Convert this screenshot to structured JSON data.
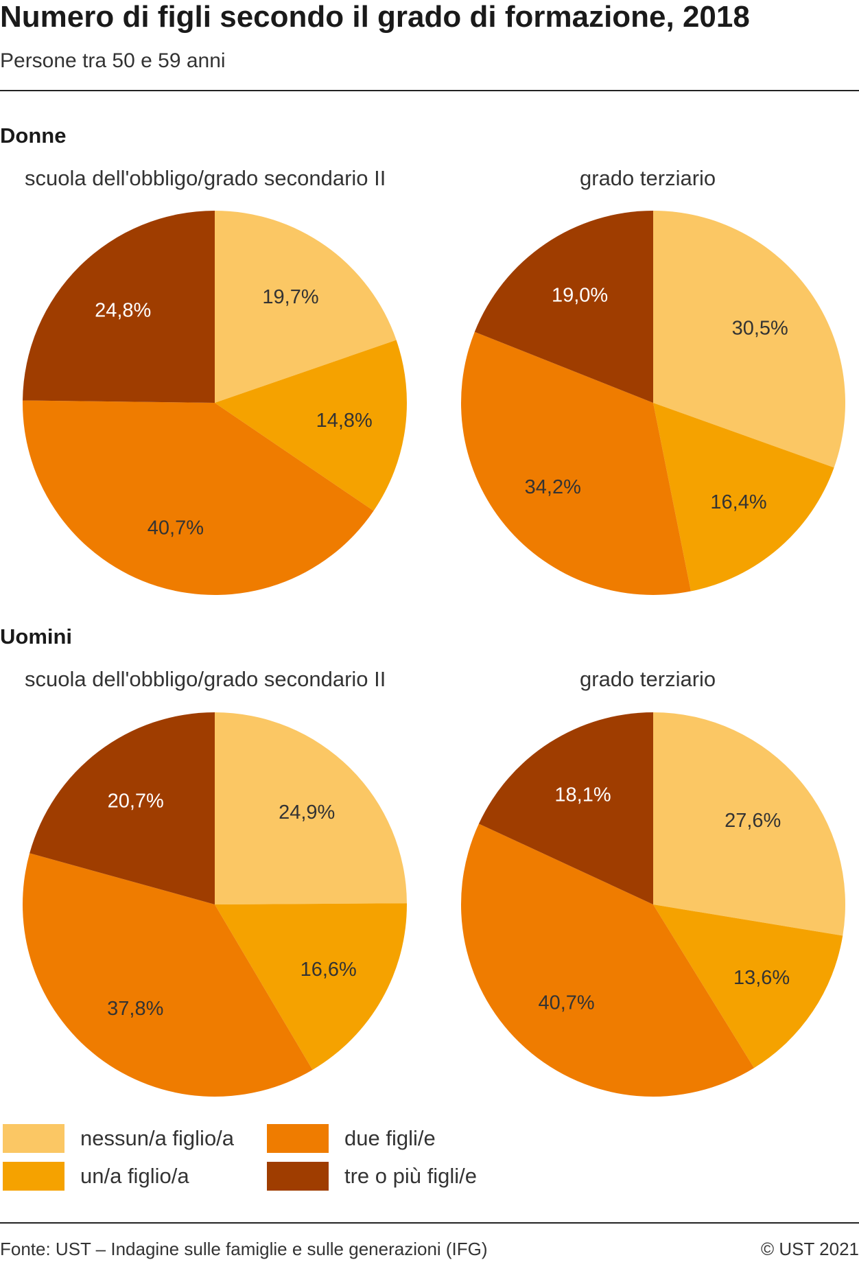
{
  "title": "Numero di figli secondo il grado di formazione, 2018",
  "subtitle": "Persone tra 50 e 59 anni",
  "groups": {
    "donne": "Donne",
    "uomini": "Uomini"
  },
  "colors": {
    "nessun": "#fbc764",
    "uno": "#f5a200",
    "due": "#ef7c00",
    "tre": "#9f3d00",
    "text_light": "#ffffff",
    "text_dark": "#333333"
  },
  "chart_data": [
    {
      "type": "pie",
      "group": "Donne",
      "title": "scuola dell'obbligo/grado secondario II",
      "categories": [
        "nessun/a figlio/a",
        "un/a figlio/a",
        "due figli/e",
        "tre o più figli/e"
      ],
      "values": [
        19.7,
        14.8,
        40.7,
        24.8
      ],
      "labels": [
        "19,7%",
        "14,8%",
        "40,7%",
        "24,8%"
      ]
    },
    {
      "type": "pie",
      "group": "Donne",
      "title": "grado terziario",
      "categories": [
        "nessun/a figlio/a",
        "un/a figlio/a",
        "due figli/e",
        "tre o più figli/e"
      ],
      "values": [
        30.5,
        16.4,
        34.2,
        19.0
      ],
      "labels": [
        "30,5%",
        "16,4%",
        "34,2%",
        "19,0%"
      ]
    },
    {
      "type": "pie",
      "group": "Uomini",
      "title": "scuola dell'obbligo/grado secondario II",
      "categories": [
        "nessun/a figlio/a",
        "un/a figlio/a",
        "due figli/e",
        "tre o più figli/e"
      ],
      "values": [
        24.9,
        16.6,
        37.8,
        20.7
      ],
      "labels": [
        "24,9%",
        "16,6%",
        "37,8%",
        "20,7%"
      ]
    },
    {
      "type": "pie",
      "group": "Uomini",
      "title": "grado terziario",
      "categories": [
        "nessun/a figlio/a",
        "un/a figlio/a",
        "due figli/e",
        "tre o più figli/e"
      ],
      "values": [
        27.6,
        13.6,
        40.7,
        18.1
      ],
      "labels": [
        "27,6%",
        "13,6%",
        "40,7%",
        "18,1%"
      ]
    }
  ],
  "legend": {
    "items": [
      {
        "label": "nessun/a figlio/a",
        "color": "#fbc764"
      },
      {
        "label": "un/a figlio/a",
        "color": "#f5a200"
      },
      {
        "label": "due figli/e",
        "color": "#ef7c00"
      },
      {
        "label": "tre o più figli/e",
        "color": "#9f3d00"
      }
    ]
  },
  "source": "Fonte: UST – Indagine sulle famiglie e sulle generazioni (IFG)",
  "copyright": "© UST 2021"
}
